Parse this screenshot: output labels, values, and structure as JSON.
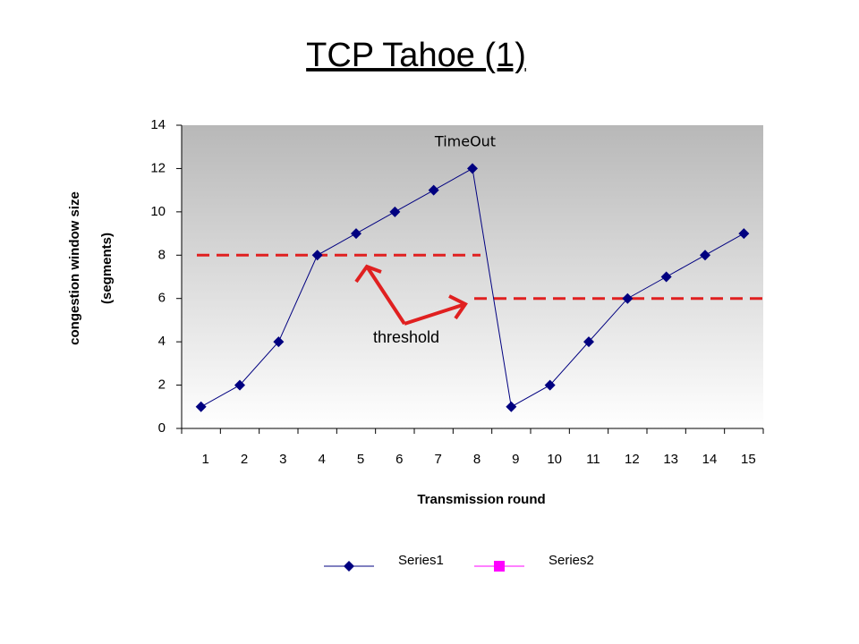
{
  "chart_data": {
    "type": "line",
    "title": "TCP Tahoe (1)",
    "x_label": "Transmission round",
    "y_label": [
      "congestion window size",
      "(segments)"
    ],
    "categories": [
      "1",
      "2",
      "3",
      "4",
      "5",
      "6",
      "7",
      "8",
      "9",
      "10",
      "11",
      "12",
      "13",
      "14",
      "15"
    ],
    "series": [
      {
        "name": "Series1",
        "color": "#000080",
        "values": [
          1,
          2,
          4,
          8,
          9,
          10,
          11,
          12,
          1,
          2,
          4,
          6,
          7,
          8,
          9
        ]
      },
      {
        "name": "Series2",
        "color": "#ff00ff",
        "values": [
          null,
          null,
          null,
          null,
          null,
          null,
          null,
          null,
          null,
          null,
          null,
          null,
          null,
          null,
          null
        ]
      }
    ],
    "ylim": [
      0,
      14
    ],
    "yticks": [
      0,
      2,
      4,
      6,
      8,
      10,
      12,
      14
    ],
    "annotations": {
      "timeout": "TimeOut",
      "threshold": "threshold",
      "threshold_levels": [
        8,
        6
      ],
      "threshold_color": "#e02020"
    }
  }
}
